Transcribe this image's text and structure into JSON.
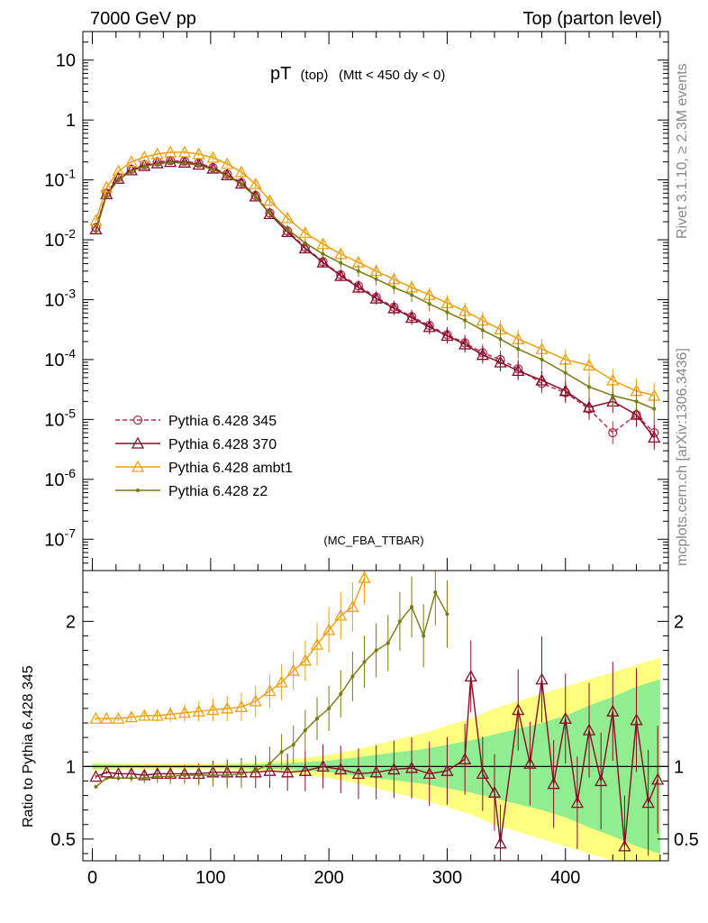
{
  "header": {
    "left": "7000 GeV pp",
    "right": "Top (parton level)"
  },
  "side": {
    "rivet": "Rivet 3.1.10, ≥ 2.3M events",
    "mcplots": "mcplots.cern.ch [arXiv:1306.3436]"
  },
  "watermark": "(MC_FBA_TTBAR)",
  "colors": {
    "p345": "#b0344c",
    "p370": "#8b0a2a",
    "ambt1": "#f0a010",
    "z2": "#7a7a12",
    "band_inner": "#90ee90",
    "band_outer": "#ffff80"
  },
  "chart_data": [
    {
      "type": "line",
      "title_main": "pT",
      "title_sub": "(top)",
      "title_cut": "(Mtt < 450 dy < 0)",
      "xlim": [
        -8,
        487
      ],
      "ylim": [
        3e-08,
        30
      ],
      "yscale": "log",
      "ytick_labels": [
        {
          "value": 10,
          "label": "10"
        },
        {
          "value": 1,
          "label": "1"
        },
        {
          "value": 0.1,
          "base": "10",
          "exp": "-1"
        },
        {
          "value": 0.01,
          "base": "10",
          "exp": "-2"
        },
        {
          "value": 0.001,
          "base": "10",
          "exp": "-3"
        },
        {
          "value": 0.0001,
          "base": "10",
          "exp": "-4"
        },
        {
          "value": 1e-05,
          "base": "10",
          "exp": "-5"
        },
        {
          "value": 1e-06,
          "base": "10",
          "exp": "-6"
        },
        {
          "value": 1e-07,
          "base": "10",
          "exp": "-7"
        }
      ],
      "legend_position": "bottom-left",
      "series": [
        {
          "name": "Pythia 6.428 345",
          "key": "p345",
          "marker": "circle",
          "dashed": true,
          "x": [
            3,
            12,
            22,
            33,
            44,
            55,
            66,
            78,
            90,
            102,
            114,
            126,
            138,
            150,
            165,
            180,
            195,
            210,
            225,
            240,
            255,
            270,
            285,
            300,
            315,
            330,
            345,
            360,
            380,
            400,
            420,
            440,
            460,
            475
          ],
          "y": [
            0.016,
            0.06,
            0.11,
            0.15,
            0.18,
            0.2,
            0.21,
            0.205,
            0.19,
            0.16,
            0.125,
            0.09,
            0.055,
            0.028,
            0.014,
            0.0075,
            0.0043,
            0.0026,
            0.0017,
            0.0011,
            0.00075,
            0.00052,
            0.00037,
            0.00026,
            0.00019,
            0.00013,
            0.0001,
            7e-05,
            4e-05,
            2.8e-05,
            1.5e-05,
            6e-06,
            1.2e-05,
            6e-06
          ]
        },
        {
          "name": "Pythia 6.428 370",
          "key": "p370",
          "marker": "triangle",
          "dashed": false,
          "x": [
            3,
            12,
            22,
            33,
            44,
            55,
            66,
            78,
            90,
            102,
            114,
            126,
            138,
            150,
            165,
            180,
            195,
            210,
            225,
            240,
            255,
            270,
            285,
            300,
            315,
            330,
            345,
            360,
            380,
            400,
            420,
            440,
            460,
            475
          ],
          "y": [
            0.015,
            0.058,
            0.105,
            0.145,
            0.172,
            0.19,
            0.2,
            0.195,
            0.18,
            0.155,
            0.12,
            0.087,
            0.053,
            0.027,
            0.0135,
            0.0072,
            0.0042,
            0.0025,
            0.0016,
            0.00105,
            0.00072,
            0.0005,
            0.00035,
            0.00025,
            0.00018,
            0.00012,
            9e-05,
            6.5e-05,
            4.5e-05,
            3e-05,
            1.6e-05,
            2e-05,
            1.2e-05,
            5e-06
          ]
        },
        {
          "name": "Pythia 6.428 ambt1",
          "key": "ambt1",
          "marker": "triangle",
          "dashed": false,
          "x": [
            3,
            12,
            22,
            33,
            44,
            55,
            66,
            78,
            90,
            102,
            114,
            126,
            138,
            150,
            165,
            180,
            195,
            210,
            225,
            240,
            255,
            270,
            285,
            300,
            315,
            330,
            345,
            360,
            380,
            400,
            420,
            440,
            460,
            475
          ],
          "y": [
            0.021,
            0.075,
            0.14,
            0.2,
            0.24,
            0.27,
            0.29,
            0.29,
            0.27,
            0.235,
            0.185,
            0.135,
            0.085,
            0.045,
            0.023,
            0.013,
            0.0085,
            0.0058,
            0.0042,
            0.003,
            0.0022,
            0.0016,
            0.0012,
            0.00088,
            0.00065,
            0.00045,
            0.00032,
            0.00022,
            0.00015,
            0.0001,
            8e-05,
            4.5e-05,
            3e-05,
            2.5e-05
          ]
        },
        {
          "name": "Pythia 6.428 z2",
          "key": "z2",
          "marker": "dot",
          "dashed": false,
          "x": [
            3,
            12,
            22,
            33,
            44,
            55,
            66,
            78,
            90,
            102,
            114,
            126,
            138,
            150,
            165,
            180,
            195,
            210,
            225,
            240,
            255,
            270,
            285,
            300,
            315,
            330,
            345,
            360,
            380,
            400,
            420,
            440,
            460,
            475
          ],
          "y": [
            0.014,
            0.055,
            0.1,
            0.14,
            0.168,
            0.185,
            0.195,
            0.19,
            0.175,
            0.15,
            0.117,
            0.085,
            0.052,
            0.028,
            0.015,
            0.0088,
            0.0058,
            0.0041,
            0.003,
            0.0022,
            0.0016,
            0.0012,
            0.00085,
            0.00062,
            0.00045,
            0.00031,
            0.00022,
            0.00015,
            0.0001,
            6e-05,
            3.5e-05,
            2.5e-05,
            2e-05,
            1.5e-05
          ]
        }
      ]
    },
    {
      "type": "line",
      "ylabel": "Ratio to Pythia 6.428 345",
      "xlim": [
        -8,
        487
      ],
      "ylim": [
        0.35,
        2.35
      ],
      "xticks": [
        0,
        100,
        200,
        300,
        400
      ],
      "yticks": [
        0.5,
        1,
        2
      ],
      "ytick_labels": [
        "0.5",
        "1",
        "2"
      ],
      "band_x": [
        0,
        20,
        40,
        60,
        80,
        100,
        120,
        140,
        160,
        180,
        200,
        220,
        240,
        260,
        280,
        300,
        320,
        340,
        360,
        380,
        400,
        420,
        440,
        460,
        480
      ],
      "band_inner": [
        0.015,
        0.012,
        0.01,
        0.01,
        0.01,
        0.01,
        0.012,
        0.015,
        0.02,
        0.03,
        0.04,
        0.06,
        0.08,
        0.1,
        0.12,
        0.15,
        0.18,
        0.22,
        0.26,
        0.3,
        0.35,
        0.42,
        0.48,
        0.55,
        0.6
      ],
      "band_outer": [
        0.03,
        0.022,
        0.02,
        0.02,
        0.02,
        0.02,
        0.024,
        0.03,
        0.04,
        0.06,
        0.08,
        0.11,
        0.15,
        0.19,
        0.23,
        0.28,
        0.33,
        0.4,
        0.45,
        0.5,
        0.55,
        0.6,
        0.65,
        0.7,
        0.75
      ],
      "series": [
        {
          "name": "Pythia 6.428 370",
          "key": "p370",
          "marker": "triangle",
          "x": [
            3,
            12,
            22,
            33,
            44,
            55,
            66,
            78,
            90,
            102,
            114,
            126,
            138,
            150,
            165,
            180,
            195,
            210,
            225,
            240,
            255,
            270,
            285,
            300,
            315,
            320,
            330,
            340,
            345,
            360,
            370,
            380,
            390,
            400,
            410,
            420,
            430,
            440,
            450,
            460,
            470,
            478
          ],
          "y": [
            0.93,
            0.96,
            0.95,
            0.95,
            0.94,
            0.95,
            0.95,
            0.95,
            0.95,
            0.96,
            0.96,
            0.96,
            0.96,
            0.97,
            0.96,
            0.97,
            1.0,
            0.98,
            0.95,
            0.96,
            0.98,
            0.99,
            0.95,
            0.97,
            1.05,
            1.62,
            0.95,
            0.82,
            0.47,
            1.39,
            1.02,
            1.6,
            0.88,
            1.33,
            0.75,
            1.25,
            0.9,
            1.38,
            0.45,
            1.32,
            0.75,
            0.91
          ]
        },
        {
          "name": "Pythia 6.428 ambt1",
          "key": "ambt1",
          "marker": "triangle",
          "x": [
            3,
            12,
            22,
            33,
            44,
            55,
            66,
            78,
            90,
            102,
            114,
            126,
            138,
            150,
            160,
            170,
            180,
            190,
            200,
            210,
            220,
            230
          ],
          "y": [
            1.33,
            1.33,
            1.33,
            1.34,
            1.35,
            1.35,
            1.36,
            1.37,
            1.38,
            1.39,
            1.4,
            1.41,
            1.45,
            1.52,
            1.58,
            1.66,
            1.73,
            1.84,
            1.94,
            2.04,
            2.1,
            2.3
          ]
        },
        {
          "name": "Pythia 6.428 z2",
          "key": "z2",
          "marker": "dot",
          "x": [
            3,
            12,
            22,
            33,
            44,
            55,
            66,
            78,
            90,
            102,
            114,
            126,
            138,
            150,
            160,
            170,
            180,
            190,
            200,
            210,
            220,
            230,
            240,
            250,
            260,
            270,
            280,
            290,
            300
          ],
          "y": [
            0.86,
            0.92,
            0.92,
            0.92,
            0.92,
            0.93,
            0.93,
            0.94,
            0.94,
            0.94,
            0.94,
            0.95,
            0.97,
            1.02,
            1.1,
            1.15,
            1.25,
            1.33,
            1.4,
            1.5,
            1.62,
            1.72,
            1.8,
            1.85,
            2.0,
            2.1,
            1.9,
            2.2,
            2.05
          ]
        }
      ]
    }
  ]
}
